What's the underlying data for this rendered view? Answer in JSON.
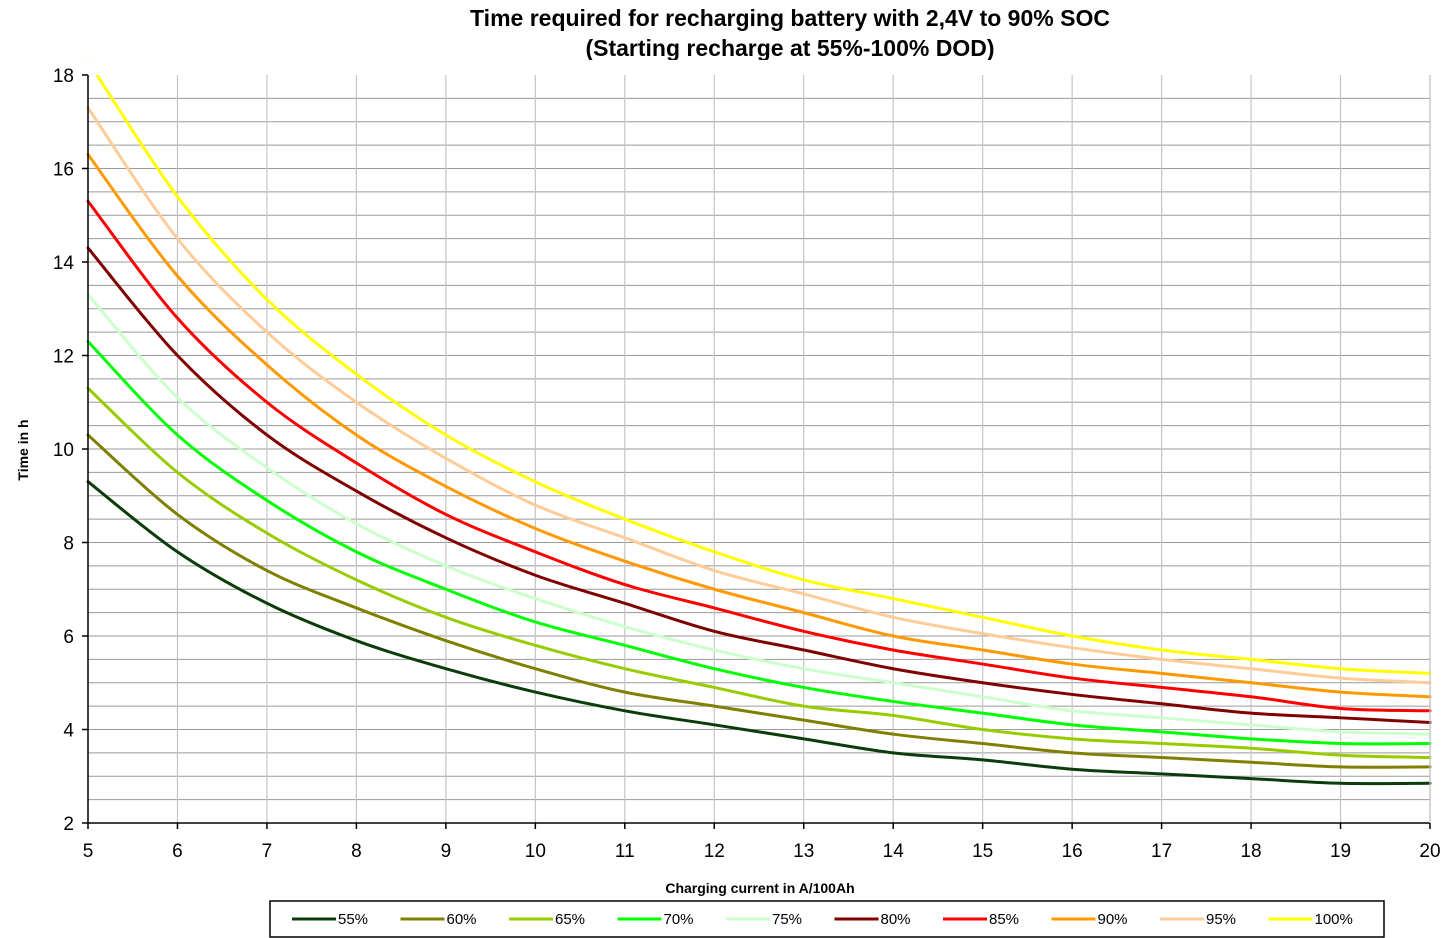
{
  "chart_data": {
    "type": "line",
    "title": "Time required for recharging battery with 2,4V to 90% SOC",
    "subtitle": "(Starting recharge at 55%-100% DOD)",
    "xlabel": "Charging current in A/100Ah",
    "ylabel": "Time in h",
    "xlim": [
      5,
      20
    ],
    "ylim": [
      2,
      18
    ],
    "x_ticks": [
      5,
      6,
      7,
      8,
      9,
      10,
      11,
      12,
      13,
      14,
      15,
      16,
      17,
      18,
      19,
      20
    ],
    "y_ticks": [
      2,
      4,
      6,
      8,
      10,
      12,
      14,
      16,
      18
    ],
    "grid": true,
    "legend_position": "bottom",
    "x": [
      5,
      6,
      7,
      8,
      9,
      10,
      11,
      12,
      13,
      14,
      15,
      16,
      17,
      18,
      19,
      20
    ],
    "series": [
      {
        "name": "55%",
        "color": "#0b3d0b",
        "values": [
          9.3,
          7.8,
          6.7,
          5.9,
          5.3,
          4.8,
          4.4,
          4.1,
          3.8,
          3.5,
          3.35,
          3.15,
          3.05,
          2.95,
          2.85,
          2.85
        ]
      },
      {
        "name": "60%",
        "color": "#808000",
        "values": [
          10.3,
          8.6,
          7.4,
          6.6,
          5.9,
          5.3,
          4.8,
          4.5,
          4.2,
          3.9,
          3.7,
          3.5,
          3.4,
          3.3,
          3.2,
          3.2
        ]
      },
      {
        "name": "65%",
        "color": "#99cc00",
        "values": [
          11.3,
          9.5,
          8.2,
          7.2,
          6.4,
          5.8,
          5.3,
          4.9,
          4.5,
          4.3,
          4.0,
          3.8,
          3.7,
          3.6,
          3.45,
          3.4
        ]
      },
      {
        "name": "70%",
        "color": "#00ff00",
        "values": [
          12.3,
          10.3,
          8.9,
          7.8,
          7.0,
          6.3,
          5.8,
          5.3,
          4.9,
          4.6,
          4.35,
          4.1,
          3.95,
          3.8,
          3.7,
          3.7
        ]
      },
      {
        "name": "75%",
        "color": "#ccffcc",
        "values": [
          13.3,
          11.1,
          9.6,
          8.4,
          7.5,
          6.8,
          6.2,
          5.7,
          5.3,
          5.0,
          4.7,
          4.4,
          4.25,
          4.1,
          3.95,
          3.9
        ]
      },
      {
        "name": "80%",
        "color": "#800000",
        "values": [
          14.3,
          12.0,
          10.3,
          9.1,
          8.1,
          7.3,
          6.7,
          6.1,
          5.7,
          5.3,
          5.0,
          4.75,
          4.55,
          4.35,
          4.25,
          4.15
        ]
      },
      {
        "name": "85%",
        "color": "#ff0000",
        "values": [
          15.3,
          12.8,
          11.0,
          9.7,
          8.6,
          7.8,
          7.1,
          6.6,
          6.1,
          5.7,
          5.4,
          5.1,
          4.9,
          4.7,
          4.45,
          4.4
        ]
      },
      {
        "name": "90%",
        "color": "#ff9900",
        "values": [
          16.3,
          13.7,
          11.8,
          10.3,
          9.2,
          8.3,
          7.6,
          7.0,
          6.5,
          6.0,
          5.7,
          5.4,
          5.2,
          5.0,
          4.8,
          4.7
        ]
      },
      {
        "name": "95%",
        "color": "#ffcc99",
        "values": [
          17.3,
          14.5,
          12.5,
          11.0,
          9.8,
          8.8,
          8.1,
          7.4,
          6.9,
          6.4,
          6.05,
          5.75,
          5.5,
          5.3,
          5.1,
          5.0
        ]
      },
      {
        "name": "100%",
        "color": "#ffff00",
        "values": [
          18.3,
          15.4,
          13.2,
          11.6,
          10.3,
          9.3,
          8.5,
          7.8,
          7.2,
          6.8,
          6.4,
          6.0,
          5.7,
          5.5,
          5.3,
          5.2
        ]
      }
    ]
  }
}
